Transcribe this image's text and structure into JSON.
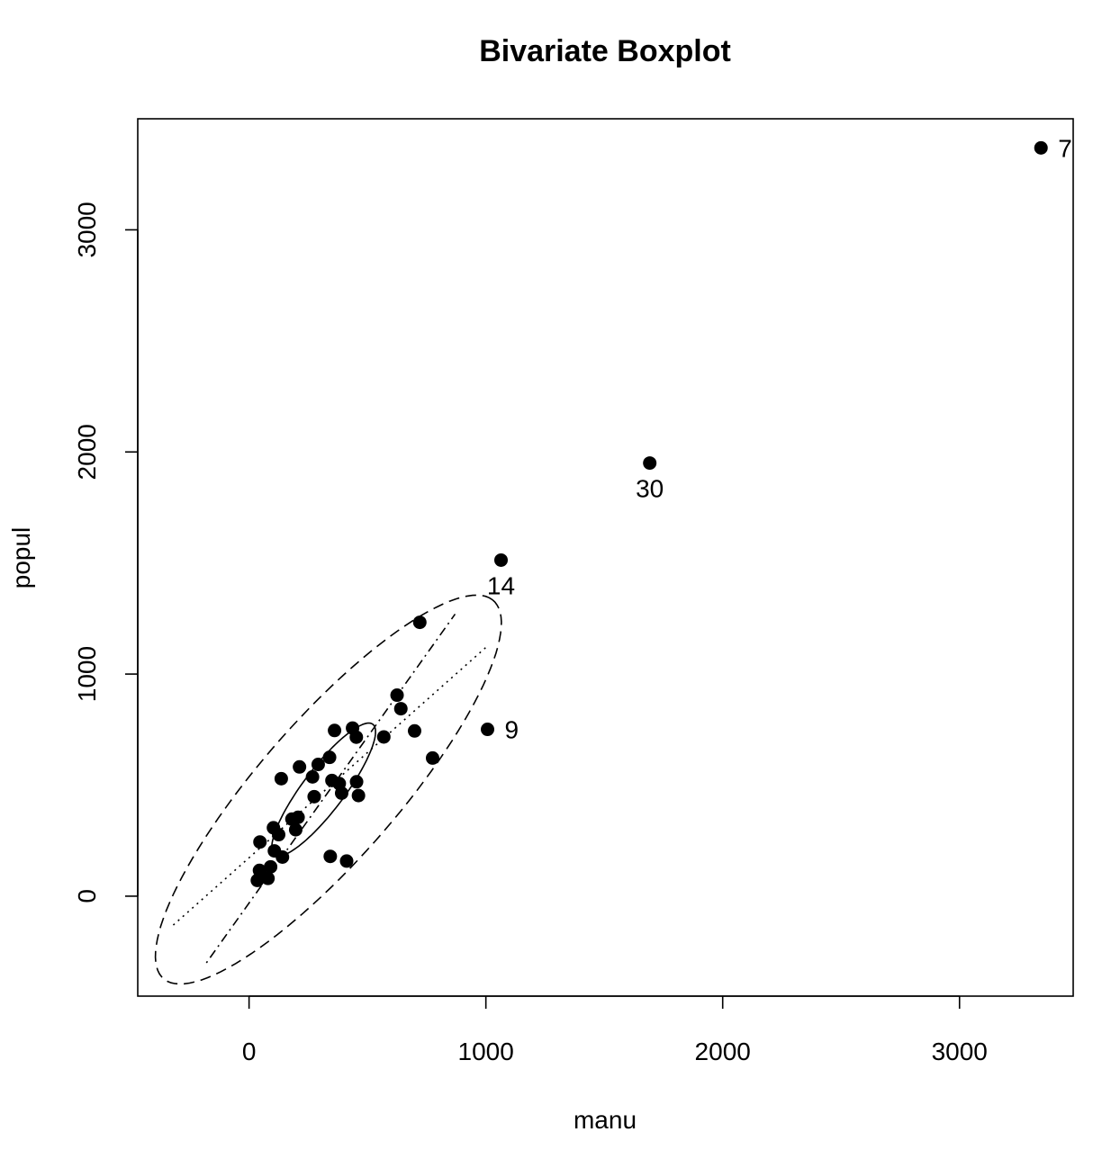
{
  "chart_data": {
    "type": "scatter",
    "title": "Bivariate Boxplot",
    "xlabel": "manu",
    "ylabel": "popul",
    "xlim": [
      -470,
      3480
    ],
    "ylim": [
      -450,
      3500
    ],
    "x_ticks": [
      0,
      1000,
      2000,
      3000
    ],
    "y_ticks": [
      0,
      1000,
      2000,
      3000
    ],
    "grid": false,
    "points": [
      {
        "x": 3344,
        "y": 3369
      },
      {
        "x": 1692,
        "y": 1950
      },
      {
        "x": 1064,
        "y": 1513
      },
      {
        "x": 1007,
        "y": 751
      },
      {
        "x": 721,
        "y": 1233
      },
      {
        "x": 775,
        "y": 622
      },
      {
        "x": 625,
        "y": 905
      },
      {
        "x": 641,
        "y": 844
      },
      {
        "x": 699,
        "y": 744
      },
      {
        "x": 569,
        "y": 717
      },
      {
        "x": 454,
        "y": 515
      },
      {
        "x": 412,
        "y": 158
      },
      {
        "x": 462,
        "y": 453
      },
      {
        "x": 437,
        "y": 757
      },
      {
        "x": 453,
        "y": 716
      },
      {
        "x": 361,
        "y": 746
      },
      {
        "x": 343,
        "y": 179
      },
      {
        "x": 340,
        "y": 625
      },
      {
        "x": 292,
        "y": 593
      },
      {
        "x": 275,
        "y": 448
      },
      {
        "x": 268,
        "y": 537
      },
      {
        "x": 213,
        "y": 582
      },
      {
        "x": 350,
        "y": 521
      },
      {
        "x": 381,
        "y": 507
      },
      {
        "x": 391,
        "y": 464
      },
      {
        "x": 207,
        "y": 355
      },
      {
        "x": 197,
        "y": 299
      },
      {
        "x": 181,
        "y": 347
      },
      {
        "x": 136,
        "y": 529
      },
      {
        "x": 125,
        "y": 277
      },
      {
        "x": 103,
        "y": 308
      },
      {
        "x": 107,
        "y": 204
      },
      {
        "x": 141,
        "y": 176
      },
      {
        "x": 91,
        "y": 132
      },
      {
        "x": 46,
        "y": 244
      },
      {
        "x": 44,
        "y": 116
      },
      {
        "x": 80,
        "y": 80
      },
      {
        "x": 35,
        "y": 71
      }
    ],
    "labels": [
      {
        "text": "7",
        "x": 3344,
        "y": 3369,
        "position": "right"
      },
      {
        "text": "30",
        "x": 1692,
        "y": 1950,
        "position": "below"
      },
      {
        "text": "14",
        "x": 1064,
        "y": 1513,
        "position": "below"
      },
      {
        "text": "9",
        "x": 1007,
        "y": 751,
        "position": "right"
      }
    ],
    "inner_ellipse": {
      "center": [
        315,
        480
      ],
      "semi_major": 360,
      "semi_minor": 90,
      "angle_deg": 55
    },
    "outer_ellipse": {
      "center": [
        335,
        480
      ],
      "semi_major": 1100,
      "semi_minor": 300,
      "angle_deg": 51
    },
    "regression_lines": [
      {
        "style": "dotted",
        "from": [
          -320,
          -130
        ],
        "to": [
          1000,
          1120
        ]
      },
      {
        "style": "dotdash",
        "from": [
          -180,
          -300
        ],
        "to": [
          870,
          1270
        ]
      }
    ]
  }
}
